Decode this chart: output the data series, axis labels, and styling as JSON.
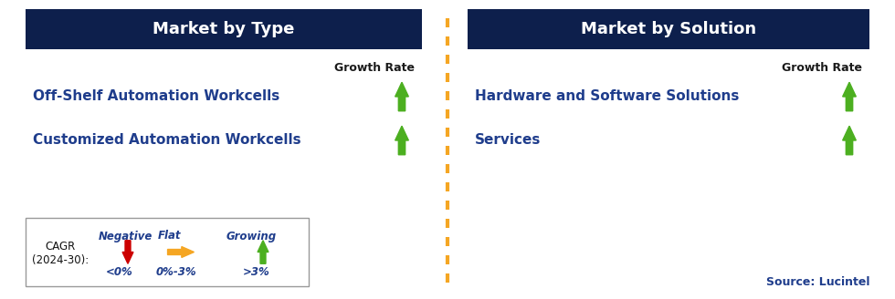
{
  "left_title": "Market by Type",
  "right_title": "Market by Solution",
  "left_items": [
    "Off-Shelf Automation Workcells",
    "Customized Automation Workcells"
  ],
  "right_items": [
    "Hardware and Software Solutions",
    "Services"
  ],
  "growth_rate_label": "Growth Rate",
  "header_bg_color": "#0d1f4c",
  "header_text_color": "#ffffff",
  "item_text_color": "#1f3d8c",
  "growth_rate_text_color": "#1a1a1a",
  "green_arrow_color": "#4caf20",
  "red_arrow_color": "#cc0000",
  "orange_arrow_color": "#f5a623",
  "dashed_line_color": "#f5a623",
  "source_text": "Source: Lucintel",
  "source_color": "#1f3d8c",
  "legend_label_line1": "CAGR",
  "legend_label_line2": "(2024-30):",
  "legend_negative_label": "Negative",
  "legend_negative_value": "<0%",
  "legend_flat_label": "Flat",
  "legend_flat_value": "0%-3%",
  "legend_growing_label": "Growing",
  "legend_growing_value": ">3%",
  "bg_color": "#ffffff"
}
